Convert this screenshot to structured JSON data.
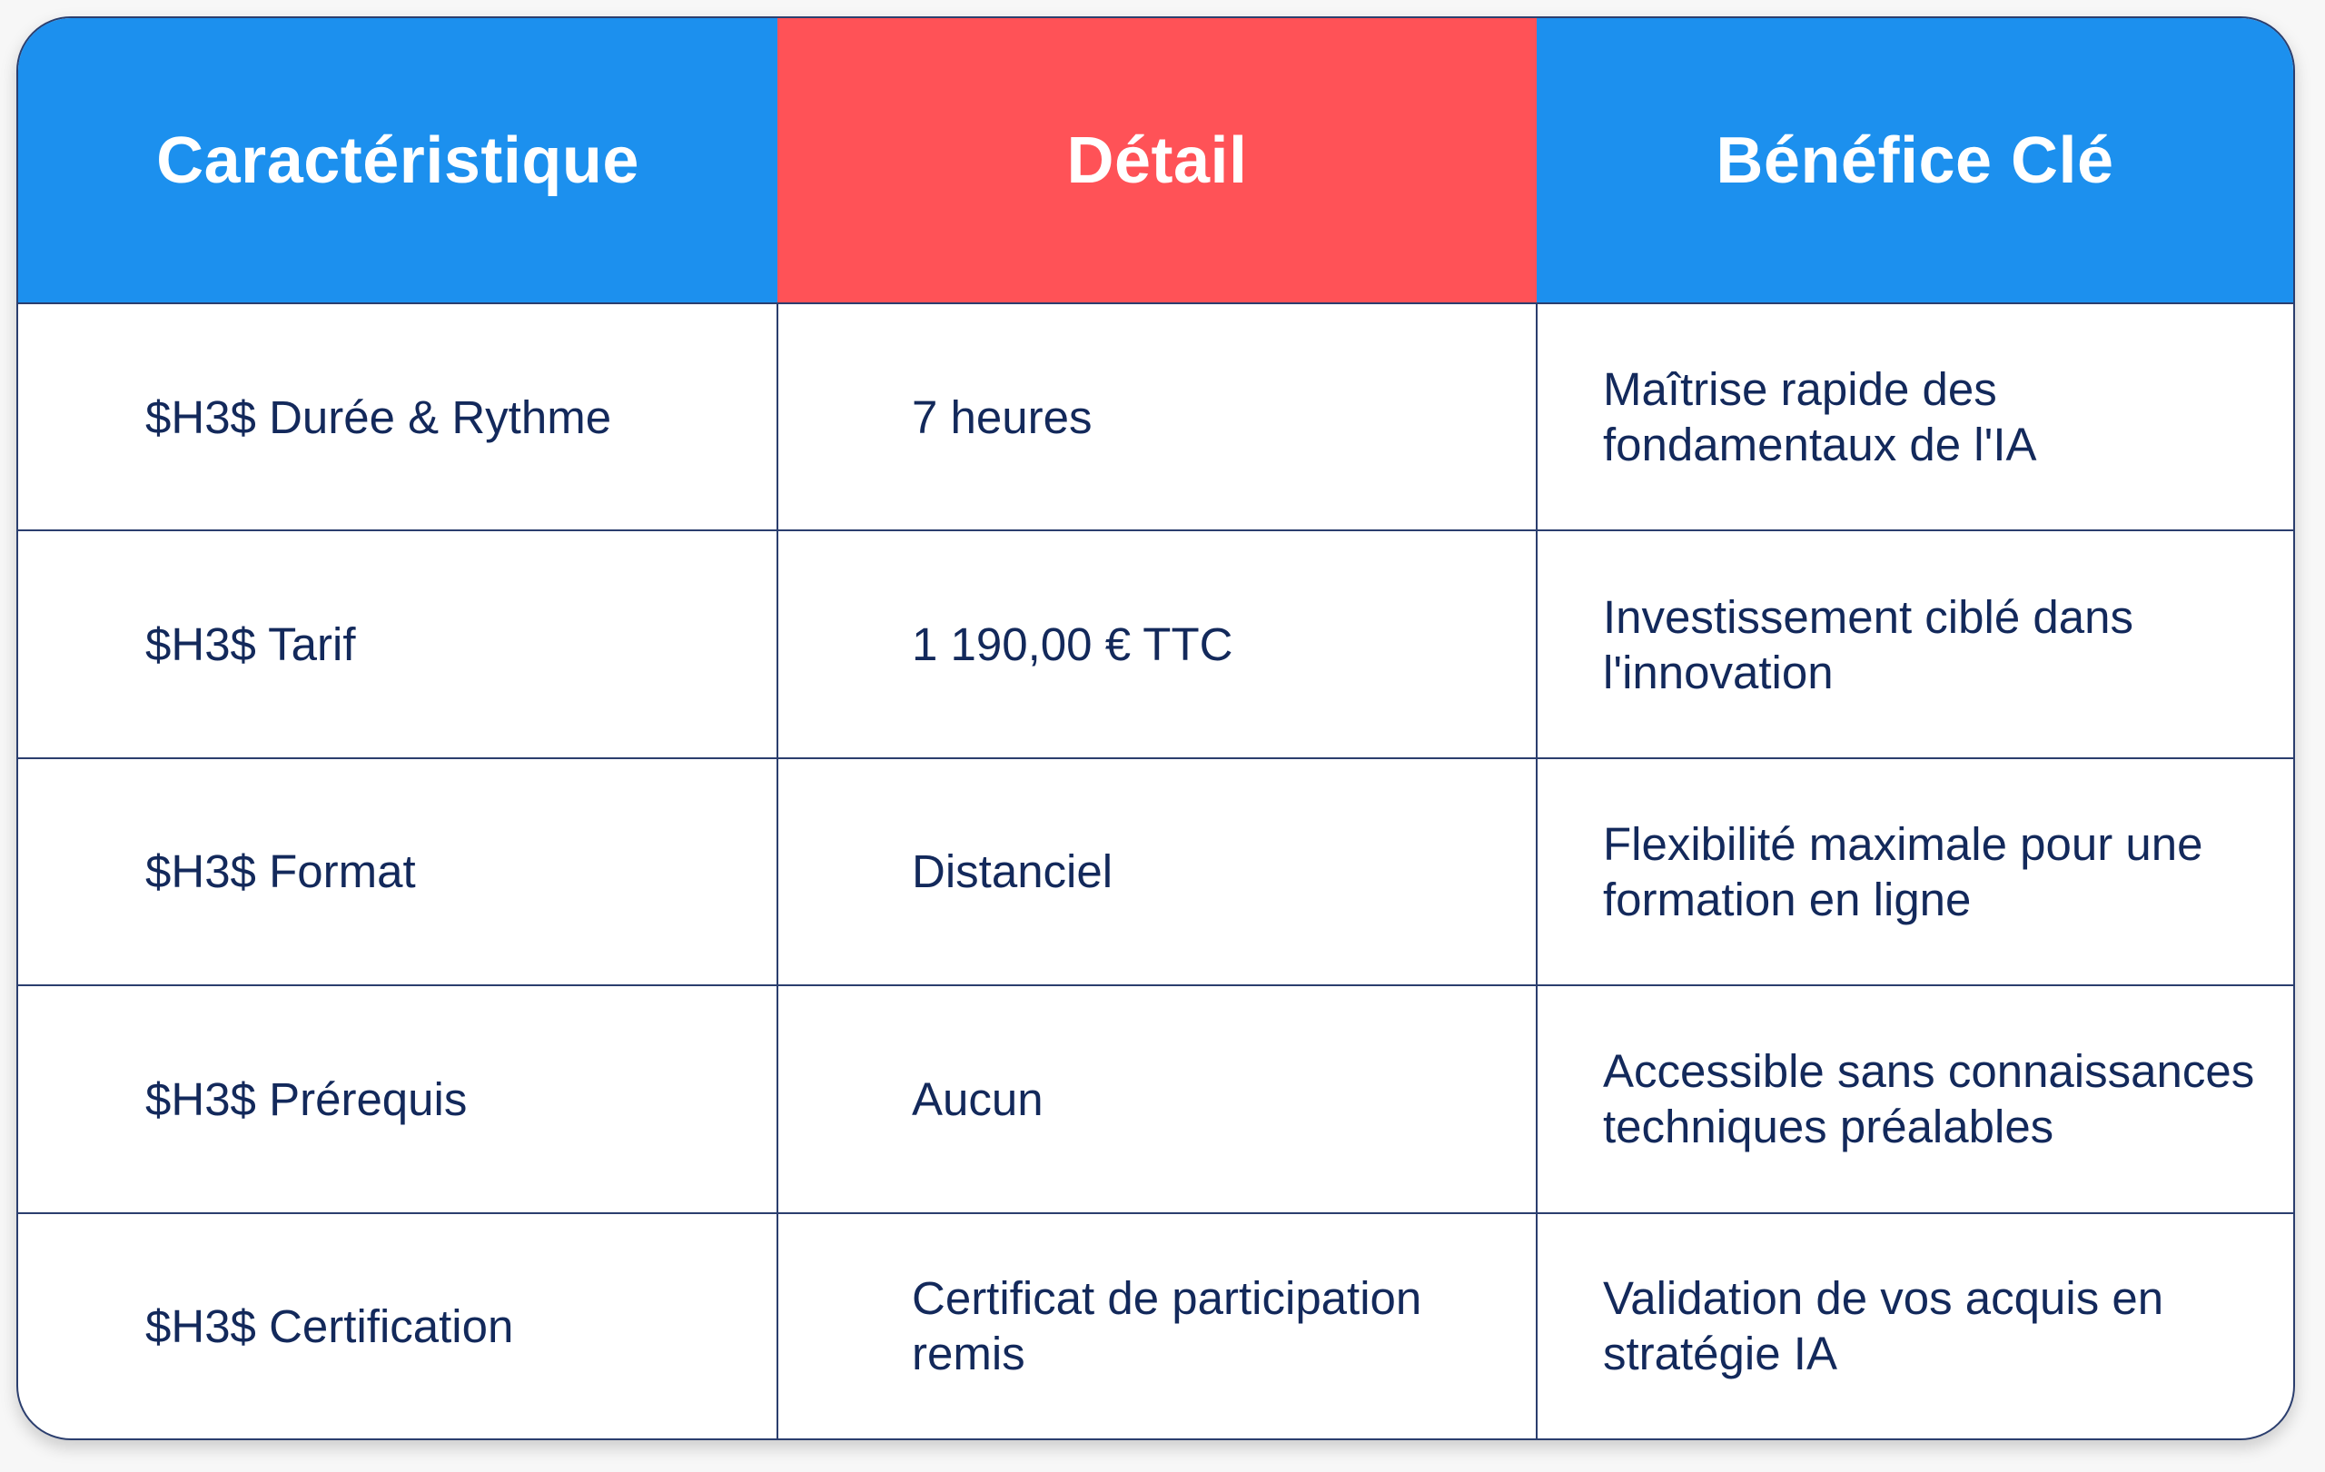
{
  "table": {
    "headers": [
      "Caractéristique",
      "Détail",
      "Bénéfice Clé"
    ],
    "header_colors": [
      "#1C90EE",
      "#FF5257",
      "#1C90EE"
    ],
    "rows": [
      [
        "$H3$ Durée & Rythme",
        "7 heures",
        "Maîtrise rapide des fondamentaux de l'IA"
      ],
      [
        "$H3$ Tarif",
        "1 190,00 € TTC",
        "Investissement ciblé dans l'innovation"
      ],
      [
        "$H3$ Format",
        "Distanciel",
        "Flexibilité maximale pour une formation en ligne"
      ],
      [
        "$H3$ Prérequis",
        "Aucun",
        "Accessible sans connaissances techniques préalables"
      ],
      [
        "$H3$ Certification",
        "Certificat de participation remis",
        "Validation de vos acquis en stratégie IA"
      ]
    ],
    "text_color": "#13295B"
  }
}
